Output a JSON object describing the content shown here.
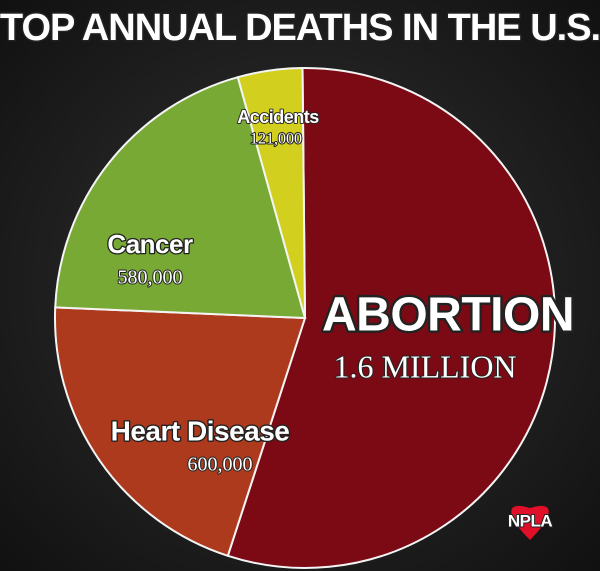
{
  "chart_data": {
    "type": "pie",
    "title": "TOP ANNUAL DEATHS IN THE U.S.",
    "categories": [
      "ABORTION",
      "Heart Disease",
      "Cancer",
      "Accidents"
    ],
    "values": [
      1600000,
      600000,
      580000,
      121000
    ],
    "value_labels": [
      "1.6 MILLION",
      "600,000",
      "580,000",
      "121,000"
    ],
    "colors": [
      "#7b0a15",
      "#ad3a1d",
      "#78a935",
      "#d3cf1f"
    ]
  },
  "watermark": "NPLA"
}
